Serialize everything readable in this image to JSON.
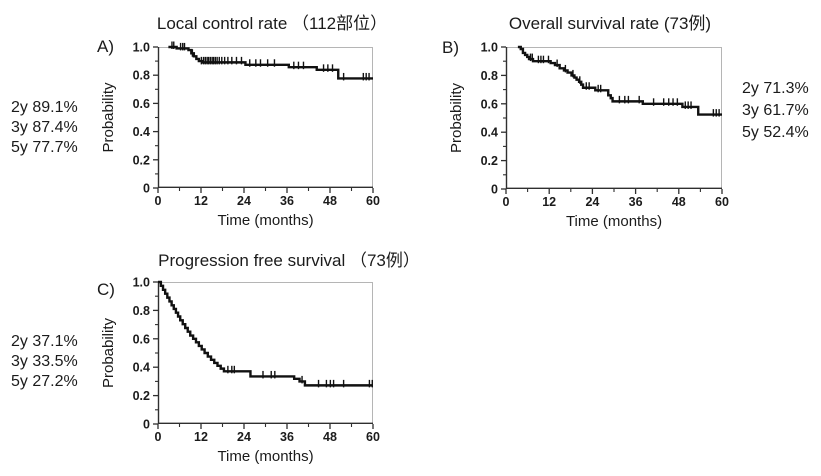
{
  "figure": {
    "background": "#ffffff",
    "curve_color": "#111111",
    "axis_color": "#2f2f2f",
    "frame_light_color": "#b5b5b5",
    "text_color": "#1b1b1b"
  },
  "chart_data": [
    {
      "type": "line",
      "subtype": "kaplan-meier-step",
      "panel_letter": "A)",
      "title": "Local control rate （112部位）",
      "xlabel": "Time (months)",
      "ylabel": "Probability",
      "xlim": [
        0,
        60
      ],
      "ylim": [
        0,
        1.0
      ],
      "xtick_labels": [
        "0",
        "12",
        "24",
        "36",
        "48",
        "60"
      ],
      "xtick_values": [
        0,
        12,
        24,
        36,
        48,
        60
      ],
      "xminor_values": [
        6,
        18,
        30,
        42,
        54
      ],
      "ytick_labels": [
        "1.0",
        "0.8",
        "0.6",
        "0.4",
        "0.2",
        "0"
      ],
      "ytick_values": [
        1.0,
        0.8,
        0.6,
        0.4,
        0.2,
        0
      ],
      "yminor_values": [
        0.9,
        0.7,
        0.5,
        0.3,
        0.1
      ],
      "annotation_lines": [
        "2y 89.1%",
        "3y 87.4%",
        "5y 77.7%"
      ],
      "survival_rates": {
        "2y": 89.1,
        "3y": 87.4,
        "5y": 77.7
      },
      "steps": [
        [
          2.9,
          1.0
        ],
        [
          5.2,
          0.99
        ],
        [
          8.5,
          0.978
        ],
        [
          9.3,
          0.955
        ],
        [
          10,
          0.934
        ],
        [
          10.7,
          0.915
        ],
        [
          11.4,
          0.9
        ],
        [
          12.5,
          0.891
        ],
        [
          24.4,
          0.874
        ],
        [
          36.5,
          0.857
        ],
        [
          44.3,
          0.838
        ],
        [
          50.3,
          0.777
        ],
        [
          60,
          0.777
        ]
      ],
      "censors": [
        [
          3.9,
          1.0
        ],
        [
          4.4,
          1.0
        ],
        [
          6.3,
          0.99
        ],
        [
          6.9,
          0.99
        ],
        [
          7.4,
          0.99
        ],
        [
          9.6,
          0.945
        ],
        [
          12.1,
          0.891
        ],
        [
          12.7,
          0.891
        ],
        [
          13.2,
          0.891
        ],
        [
          13.7,
          0.891
        ],
        [
          14.1,
          0.891
        ],
        [
          14.6,
          0.891
        ],
        [
          15.1,
          0.891
        ],
        [
          15.5,
          0.891
        ],
        [
          16,
          0.891
        ],
        [
          16.5,
          0.891
        ],
        [
          17.1,
          0.891
        ],
        [
          17.8,
          0.891
        ],
        [
          18.6,
          0.891
        ],
        [
          19.5,
          0.891
        ],
        [
          20.6,
          0.891
        ],
        [
          21.9,
          0.891
        ],
        [
          23.3,
          0.891
        ],
        [
          25.6,
          0.874
        ],
        [
          27.3,
          0.874
        ],
        [
          28.6,
          0.874
        ],
        [
          30.6,
          0.874
        ],
        [
          32.5,
          0.874
        ],
        [
          37.9,
          0.857
        ],
        [
          39.2,
          0.857
        ],
        [
          40.6,
          0.857
        ],
        [
          46.2,
          0.838
        ],
        [
          47.4,
          0.838
        ],
        [
          48.7,
          0.838
        ],
        [
          51.8,
          0.777
        ],
        [
          57.3,
          0.777
        ],
        [
          58.1,
          0.777
        ],
        [
          58.9,
          0.777
        ]
      ]
    },
    {
      "type": "line",
      "subtype": "kaplan-meier-step",
      "panel_letter": "B)",
      "title": "Overall survival rate (73例)",
      "xlabel": "Time (months)",
      "ylabel": "Probability",
      "xlim": [
        0,
        60
      ],
      "ylim": [
        0,
        1.0
      ],
      "xtick_labels": [
        "0",
        "12",
        "24",
        "36",
        "48",
        "60"
      ],
      "xtick_values": [
        0,
        12,
        24,
        36,
        48,
        60
      ],
      "xminor_values": [
        6,
        18,
        30,
        42,
        54
      ],
      "ytick_labels": [
        "1.0",
        "0.8",
        "0.6",
        "0.4",
        "0.2",
        "0"
      ],
      "ytick_values": [
        1.0,
        0.8,
        0.6,
        0.4,
        0.2,
        0
      ],
      "yminor_values": [
        0.9,
        0.7,
        0.5,
        0.3,
        0.1
      ],
      "annotation_lines": [
        "2y 71.3%",
        "3y 61.7%",
        "5y 52.4%"
      ],
      "survival_rates": {
        "2y": 71.3,
        "3y": 61.7,
        "5y": 52.4
      },
      "steps": [
        [
          3.3,
          1.0
        ],
        [
          4.1,
          0.986
        ],
        [
          4.7,
          0.958
        ],
        [
          5.3,
          0.944
        ],
        [
          5.9,
          0.93
        ],
        [
          6.4,
          0.915
        ],
        [
          7.5,
          0.9
        ],
        [
          12.4,
          0.887
        ],
        [
          13.6,
          0.873
        ],
        [
          14.9,
          0.85
        ],
        [
          16.1,
          0.835
        ],
        [
          17.1,
          0.82
        ],
        [
          18.2,
          0.8
        ],
        [
          19,
          0.785
        ],
        [
          19.6,
          0.77
        ],
        [
          20.3,
          0.755
        ],
        [
          20.9,
          0.735
        ],
        [
          21.4,
          0.713
        ],
        [
          24.8,
          0.695
        ],
        [
          28.4,
          0.66
        ],
        [
          29.1,
          0.64
        ],
        [
          29.6,
          0.617
        ],
        [
          38,
          0.6
        ],
        [
          49,
          0.578
        ],
        [
          53.4,
          0.524
        ],
        [
          60,
          0.524
        ]
      ],
      "censors": [
        [
          6.8,
          0.915
        ],
        [
          7.3,
          0.915
        ],
        [
          9,
          0.9
        ],
        [
          9.7,
          0.9
        ],
        [
          10.4,
          0.9
        ],
        [
          11.8,
          0.9
        ],
        [
          14.2,
          0.873
        ],
        [
          16.5,
          0.835
        ],
        [
          18.6,
          0.8
        ],
        [
          20.5,
          0.755
        ],
        [
          22.3,
          0.713
        ],
        [
          23.1,
          0.713
        ],
        [
          25.6,
          0.695
        ],
        [
          26.3,
          0.695
        ],
        [
          31.5,
          0.617
        ],
        [
          33,
          0.617
        ],
        [
          34,
          0.617
        ],
        [
          37,
          0.617
        ],
        [
          41,
          0.6
        ],
        [
          43.8,
          0.6
        ],
        [
          45.2,
          0.6
        ],
        [
          46.4,
          0.6
        ],
        [
          47.6,
          0.6
        ],
        [
          49.8,
          0.578
        ],
        [
          50.6,
          0.578
        ],
        [
          51.4,
          0.578
        ],
        [
          57.6,
          0.524
        ],
        [
          58.4,
          0.524
        ],
        [
          59.2,
          0.524
        ]
      ]
    },
    {
      "type": "line",
      "subtype": "kaplan-meier-step",
      "panel_letter": "C)",
      "title": "Progression free survival （73例）",
      "xlabel": "Time (months)",
      "ylabel": "Probability",
      "xlim": [
        0,
        60
      ],
      "ylim": [
        0,
        1.0
      ],
      "xtick_labels": [
        "0",
        "12",
        "24",
        "36",
        "48",
        "60"
      ],
      "xtick_values": [
        0,
        12,
        24,
        36,
        48,
        60
      ],
      "xminor_values": [
        6,
        18,
        30,
        42,
        54
      ],
      "ytick_labels": [
        "1.0",
        "0.8",
        "0.6",
        "0.4",
        "0.2",
        "0"
      ],
      "ytick_values": [
        1.0,
        0.8,
        0.6,
        0.4,
        0.2,
        0
      ],
      "yminor_values": [
        0.9,
        0.7,
        0.5,
        0.3,
        0.1
      ],
      "annotation_lines": [
        "2y 37.1%",
        "3y 33.5%",
        "5y 27.2%"
      ],
      "survival_rates": {
        "2y": 37.1,
        "3y": 33.5,
        "5y": 27.2
      },
      "steps": [
        [
          0,
          1.0
        ],
        [
          0.8,
          0.973
        ],
        [
          1.4,
          0.945
        ],
        [
          2,
          0.918
        ],
        [
          2.6,
          0.89
        ],
        [
          3.2,
          0.863
        ],
        [
          3.8,
          0.836
        ],
        [
          4.4,
          0.81
        ],
        [
          5,
          0.784
        ],
        [
          5.6,
          0.757
        ],
        [
          6.2,
          0.73
        ],
        [
          6.9,
          0.703
        ],
        [
          7.6,
          0.676
        ],
        [
          8.3,
          0.65
        ],
        [
          9,
          0.623
        ],
        [
          9.8,
          0.6
        ],
        [
          10.6,
          0.575
        ],
        [
          11.4,
          0.55
        ],
        [
          12.2,
          0.525
        ],
        [
          13,
          0.5
        ],
        [
          13.9,
          0.475
        ],
        [
          14.8,
          0.452
        ],
        [
          15.7,
          0.43
        ],
        [
          16.6,
          0.41
        ],
        [
          17.5,
          0.39
        ],
        [
          18.4,
          0.371
        ],
        [
          25.8,
          0.335
        ],
        [
          38,
          0.318
        ],
        [
          39.5,
          0.3
        ],
        [
          41,
          0.272
        ],
        [
          60,
          0.272
        ]
      ],
      "censors": [
        [
          19.5,
          0.371
        ],
        [
          20.6,
          0.371
        ],
        [
          21.3,
          0.371
        ],
        [
          29.3,
          0.335
        ],
        [
          31.6,
          0.335
        ],
        [
          32.6,
          0.335
        ],
        [
          40.2,
          0.3
        ],
        [
          44.8,
          0.272
        ],
        [
          47,
          0.272
        ],
        [
          48.1,
          0.272
        ],
        [
          49,
          0.272
        ],
        [
          51.8,
          0.272
        ],
        [
          59,
          0.272
        ],
        [
          59.8,
          0.272
        ]
      ]
    }
  ]
}
